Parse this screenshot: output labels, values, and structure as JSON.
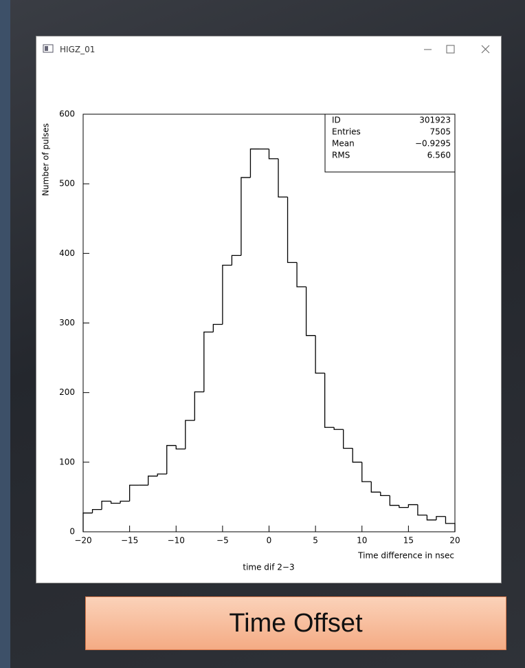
{
  "window": {
    "title": "HIGZ_01"
  },
  "chart_data": {
    "type": "histogram",
    "title": "time dif 2−3",
    "x_label": "Time difference in nsec",
    "y_label": "Number of pulses",
    "bins": [
      -20,
      -19,
      -18,
      -17,
      -16,
      -15,
      -14,
      -13,
      -12,
      -11,
      -10,
      -9,
      -8,
      -7,
      -6,
      -5,
      -4,
      -3,
      -2,
      -1,
      0,
      1,
      2,
      3,
      4,
      5,
      6,
      7,
      8,
      9,
      10,
      11,
      12,
      13,
      14,
      15,
      16,
      17,
      18,
      19,
      20
    ],
    "values": [
      27,
      32,
      44,
      41,
      44,
      67,
      67,
      80,
      83,
      124,
      119,
      160,
      201,
      287,
      298,
      383,
      397,
      509,
      550,
      550,
      536,
      481,
      387,
      352,
      282,
      228,
      150,
      147,
      120,
      100,
      72,
      57,
      52,
      38,
      35,
      39,
      24,
      17,
      22,
      12
    ],
    "color": "#000000",
    "xlim": [
      -20,
      20
    ],
    "xticks": [
      {
        "value": -20,
        "label": "−20"
      },
      {
        "value": -15,
        "label": "−15"
      },
      {
        "value": -10,
        "label": "−10"
      },
      {
        "value": -5,
        "label": "−5"
      },
      0,
      5,
      10,
      15,
      20
    ],
    "ylim": [
      0,
      600
    ],
    "yticks": [
      0,
      100,
      200,
      300,
      400,
      500,
      600
    ],
    "stats_box": [
      [
        "ID",
        "301923"
      ],
      [
        "Entries",
        "7505"
      ],
      [
        "Mean",
        "−0.9295"
      ],
      [
        "RMS",
        "6.560"
      ]
    ]
  },
  "caption": "Time Offset"
}
